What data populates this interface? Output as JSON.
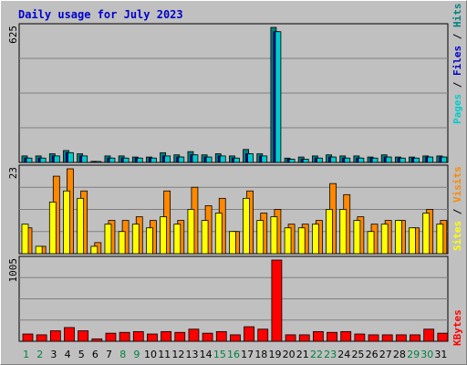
{
  "title": "Daily usage for July 2023",
  "colors": {
    "title": "#0000cc",
    "pages": "#00cccc",
    "files": "#0000cc",
    "hits": "#008080",
    "sites": "#ffff00",
    "visits": "#ff8800",
    "kbytes": "#ff0000",
    "weekend_label": "#008040",
    "weekday_label": "#000000"
  },
  "chart_data": [
    {
      "type": "bar",
      "title": "Daily usage for July 2023",
      "ylabel": "Pages / Files / Hits",
      "ymax_label": "625",
      "ylim": [
        0,
        625
      ],
      "grid": true,
      "categories": [
        "1",
        "2",
        "3",
        "4",
        "5",
        "6",
        "7",
        "8",
        "9",
        "10",
        "11",
        "12",
        "13",
        "14",
        "15",
        "16",
        "17",
        "18",
        "19",
        "20",
        "21",
        "22",
        "23",
        "24",
        "25",
        "26",
        "27",
        "28",
        "29",
        "30",
        "31"
      ],
      "series": [
        {
          "name": "Hits",
          "values": [
            30,
            30,
            40,
            55,
            40,
            5,
            30,
            30,
            25,
            25,
            45,
            35,
            50,
            35,
            40,
            30,
            60,
            40,
            625,
            20,
            25,
            30,
            35,
            30,
            30,
            25,
            35,
            25,
            25,
            30,
            30
          ]
        },
        {
          "name": "Files",
          "values": [
            20,
            20,
            30,
            45,
            30,
            3,
            20,
            20,
            20,
            20,
            30,
            25,
            35,
            25,
            30,
            20,
            40,
            30,
            605,
            15,
            15,
            20,
            25,
            20,
            20,
            20,
            25,
            20,
            20,
            25,
            25
          ]
        },
        {
          "name": "Pages",
          "values": [
            20,
            20,
            30,
            45,
            30,
            3,
            20,
            20,
            20,
            20,
            30,
            25,
            35,
            25,
            30,
            20,
            40,
            30,
            605,
            15,
            15,
            20,
            25,
            20,
            20,
            20,
            25,
            20,
            20,
            25,
            25
          ]
        }
      ]
    },
    {
      "type": "bar",
      "ylabel": "Sites / Visits",
      "ymax_label": "23",
      "ylim": [
        0,
        23
      ],
      "grid": true,
      "categories": [
        "1",
        "2",
        "3",
        "4",
        "5",
        "6",
        "7",
        "8",
        "9",
        "10",
        "11",
        "12",
        "13",
        "14",
        "15",
        "16",
        "17",
        "18",
        "19",
        "20",
        "21",
        "22",
        "23",
        "24",
        "25",
        "26",
        "27",
        "28",
        "29",
        "30",
        "31"
      ],
      "series": [
        {
          "name": "Visits",
          "values": [
            7,
            2,
            21,
            23,
            17,
            3,
            9,
            9,
            10,
            9,
            17,
            9,
            18,
            13,
            15,
            6,
            17,
            11,
            12,
            8,
            8,
            9,
            19,
            16,
            10,
            8,
            9,
            9,
            7,
            12,
            9
          ]
        },
        {
          "name": "Sites",
          "values": [
            8,
            2,
            14,
            17,
            15,
            2,
            8,
            6,
            8,
            7,
            10,
            8,
            12,
            9,
            11,
            6,
            15,
            9,
            10,
            7,
            7,
            8,
            12,
            12,
            9,
            6,
            8,
            9,
            7,
            11,
            8
          ]
        }
      ]
    },
    {
      "type": "bar",
      "ylabel": "KBytes",
      "ymax_label": "1005",
      "ylim": [
        0,
        1005
      ],
      "grid": true,
      "categories": [
        "1",
        "2",
        "3",
        "4",
        "5",
        "6",
        "7",
        "8",
        "9",
        "10",
        "11",
        "12",
        "13",
        "14",
        "15",
        "16",
        "17",
        "18",
        "19",
        "20",
        "21",
        "22",
        "23",
        "24",
        "25",
        "26",
        "27",
        "28",
        "29",
        "30",
        "31"
      ],
      "series": [
        {
          "name": "KBytes",
          "values": [
            90,
            80,
            130,
            170,
            130,
            30,
            100,
            110,
            120,
            90,
            120,
            110,
            150,
            100,
            120,
            80,
            180,
            150,
            1005,
            80,
            80,
            120,
            110,
            120,
            90,
            80,
            80,
            80,
            80,
            150,
            100
          ]
        }
      ]
    }
  ],
  "weekends": [
    1,
    2,
    8,
    9,
    15,
    16,
    22,
    23,
    29,
    30
  ]
}
